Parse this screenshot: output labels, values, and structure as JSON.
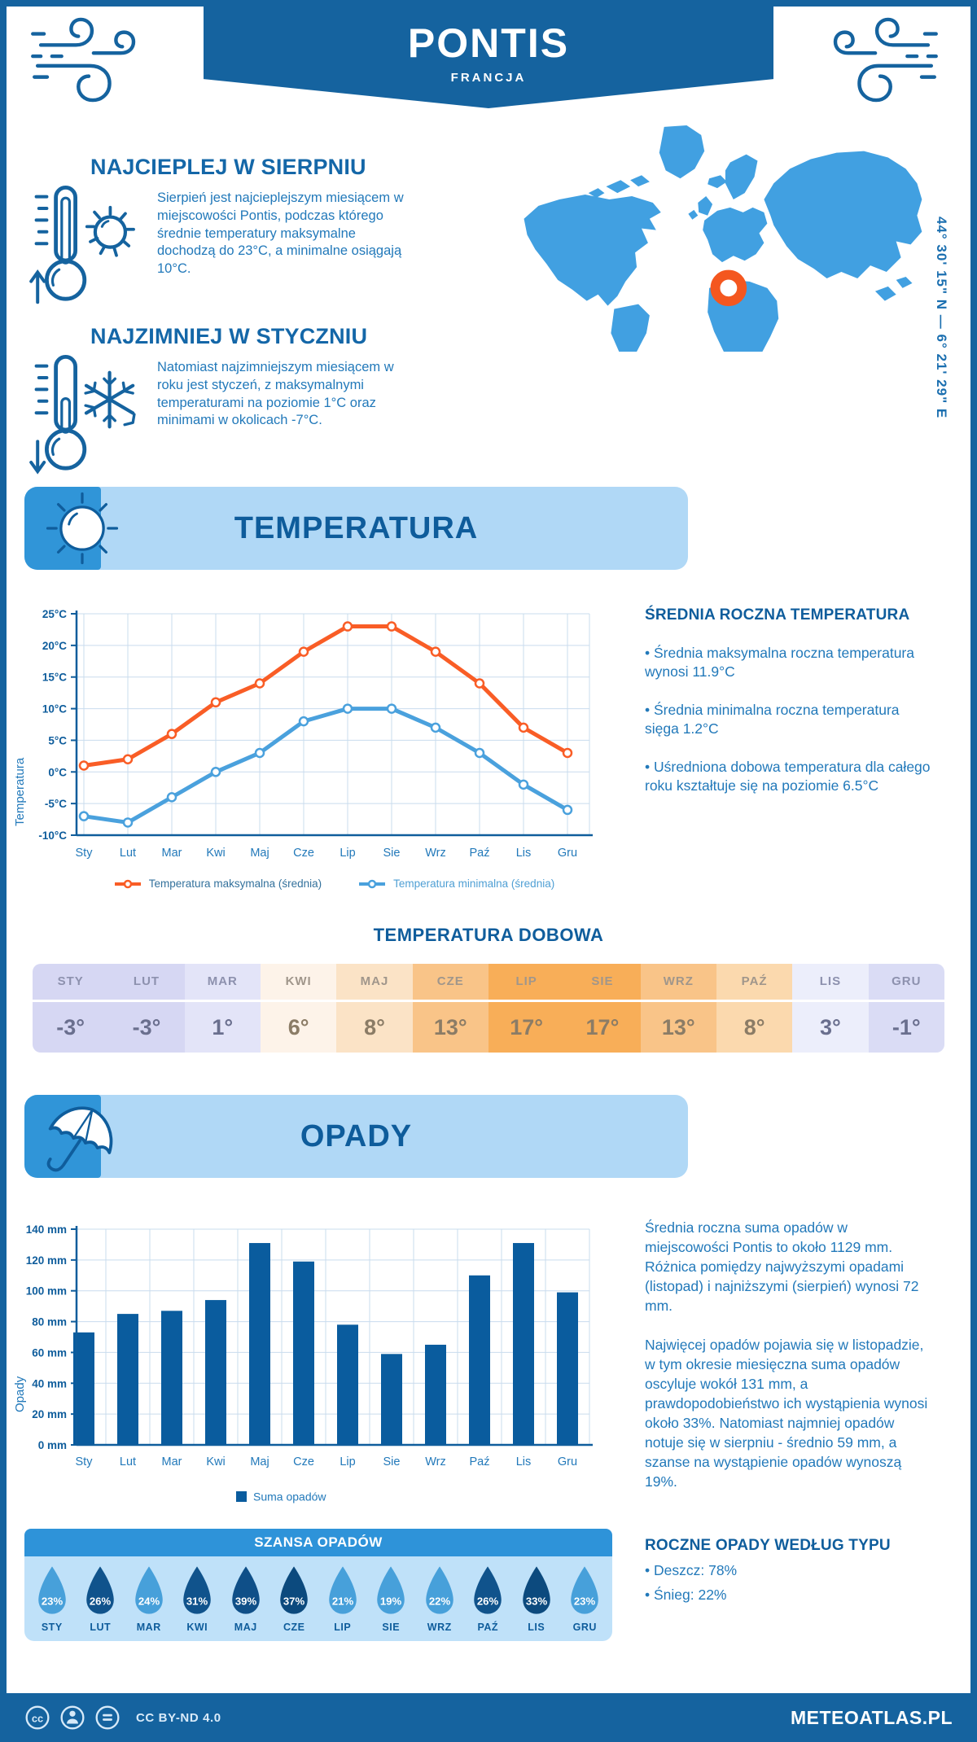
{
  "colors": {
    "primary": "#15639f",
    "heading": "#0f5d9c",
    "body_text": "#2279ba",
    "light_banner": "#b0d8f6",
    "banner_corner": "#3095d8",
    "map": "#41a0e1",
    "marker": "#f4571f",
    "grid": "#c9dcee",
    "chance_header": "#2e93d9",
    "chance_panel": "#bfe1f9"
  },
  "header": {
    "title": "PONTIS",
    "subtitle": "FRANCJA"
  },
  "coordinates": "44° 30' 15\" N — 6° 21' 29\" E",
  "highlights": [
    {
      "title": "NAJCIEPLEJ W SIERPNIU",
      "text": "Sierpień jest najcieplejszym miesiącem w miejscowości Pontis, podczas którego średnie temperatury maksymalne dochodzą do 23°C, a minimalne osiągają 10°C."
    },
    {
      "title": "NAJZIMNIEJ W STYCZNIU",
      "text": "Natomiast najzimniejszym miesiącem w roku jest styczeń, z maksymalnymi temperaturami na poziomie 1°C oraz minimami w okolicach -7°C."
    }
  ],
  "temperature_section": {
    "banner_title": "TEMPERATURA",
    "annual_heading": "ŚREDNIA ROCZNA TEMPERATURA",
    "annual_bullets": [
      "• Średnia maksymalna roczna temperatura wynosi 11.9°C",
      "• Średnia minimalna roczna temperatura sięga 1.2°C",
      "• Uśredniona dobowa temperatura dla całego roku kształtuje się na poziomie 6.5°C"
    ],
    "daily_heading": "TEMPERATURA DOBOWA",
    "daily_table": {
      "columns": [
        {
          "month": "STY",
          "value": "-3°",
          "bg": "#d6d7f3",
          "tone": "cool"
        },
        {
          "month": "LUT",
          "value": "-3°",
          "bg": "#d6d7f3",
          "tone": "cool"
        },
        {
          "month": "MAR",
          "value": "1°",
          "bg": "#e3e4f8",
          "tone": "cool"
        },
        {
          "month": "KWI",
          "value": "6°",
          "bg": "#fdf3e9",
          "tone": "warm"
        },
        {
          "month": "MAJ",
          "value": "8°",
          "bg": "#fbe3c6",
          "tone": "warm"
        },
        {
          "month": "CZE",
          "value": "13°",
          "bg": "#f9c488",
          "tone": "warm"
        },
        {
          "month": "LIP",
          "value": "17°",
          "bg": "#f8ae58",
          "tone": "warm"
        },
        {
          "month": "SIE",
          "value": "17°",
          "bg": "#f8ae58",
          "tone": "warm"
        },
        {
          "month": "WRZ",
          "value": "13°",
          "bg": "#f9c488",
          "tone": "warm"
        },
        {
          "month": "PAŹ",
          "value": "8°",
          "bg": "#fbd9ae",
          "tone": "warm"
        },
        {
          "month": "LIS",
          "value": "3°",
          "bg": "#eceefb",
          "tone": "cool"
        },
        {
          "month": "GRU",
          "value": "-1°",
          "bg": "#dadcf5",
          "tone": "cool"
        }
      ]
    }
  },
  "precipitation_section": {
    "banner_title": "OPADY",
    "paragraphs": [
      "Średnia roczna suma opadów w miejscowości Pontis to około 1129 mm. Różnica pomiędzy najwyższymi opadami (listopad) i najniższymi (sierpień) wynosi 72 mm.",
      "Najwięcej opadów pojawia się w listopadzie, w tym okresie miesięczna suma opadów oscyluje wokół 131 mm, a prawdopodobieństwo ich wystąpienia wynosi około 33%. Natomiast najmniej opadów notuje się w sierpniu - średnio 59 mm, a szanse na wystąpienie opadów wynoszą 19%."
    ],
    "chance_title": "SZANSA OPADÓW",
    "chance": [
      {
        "month": "STY",
        "percent": "23%",
        "color": "#47a0da"
      },
      {
        "month": "LUT",
        "percent": "26%",
        "color": "#10538c"
      },
      {
        "month": "MAR",
        "percent": "24%",
        "color": "#47a0da"
      },
      {
        "month": "KWI",
        "percent": "31%",
        "color": "#10538c"
      },
      {
        "month": "MAJ",
        "percent": "39%",
        "color": "#0f4f88"
      },
      {
        "month": "CZE",
        "percent": "37%",
        "color": "#0c4a7e"
      },
      {
        "month": "LIP",
        "percent": "21%",
        "color": "#47a0da"
      },
      {
        "month": "SIE",
        "percent": "19%",
        "color": "#47a0da"
      },
      {
        "month": "WRZ",
        "percent": "22%",
        "color": "#47a0da"
      },
      {
        "month": "PAŹ",
        "percent": "26%",
        "color": "#10538c"
      },
      {
        "month": "LIS",
        "percent": "33%",
        "color": "#0c4a7e"
      },
      {
        "month": "GRU",
        "percent": "23%",
        "color": "#47a0da"
      }
    ],
    "type_heading": "ROCZNE OPADY WEDŁUG TYPU",
    "type_bullets": [
      "• Deszcz: 78%",
      "• Śnieg: 22%"
    ]
  },
  "chart_data": [
    {
      "type": "line",
      "categories": [
        "Sty",
        "Lut",
        "Mar",
        "Kwi",
        "Maj",
        "Cze",
        "Lip",
        "Sie",
        "Wrz",
        "Paź",
        "Lis",
        "Gru"
      ],
      "series": [
        {
          "name": "Temperatura maksymalna (średnia)",
          "color": "#f95d26",
          "values": [
            1,
            2,
            6,
            11,
            14,
            19,
            23,
            23,
            19,
            14,
            7,
            3
          ]
        },
        {
          "name": "Temperatura minimalna (średnia)",
          "color": "#4aa1dd",
          "values": [
            -7,
            -8,
            -4,
            0,
            3,
            8,
            10,
            10,
            7,
            3,
            -2,
            -6
          ]
        }
      ],
      "ylabel": "Temperatura",
      "ylim": [
        -10,
        25
      ],
      "ytick_step": 5,
      "ytick_suffix": "°C",
      "grid": true,
      "legend_position": "bottom"
    },
    {
      "type": "bar",
      "categories": [
        "Sty",
        "Lut",
        "Mar",
        "Kwi",
        "Maj",
        "Cze",
        "Lip",
        "Sie",
        "Wrz",
        "Paź",
        "Lis",
        "Gru"
      ],
      "series": [
        {
          "name": "Suma opadów",
          "color": "#0a5c9e",
          "values": [
            73,
            85,
            87,
            94,
            131,
            119,
            78,
            59,
            65,
            110,
            131,
            99
          ]
        }
      ],
      "ylabel": "Opady",
      "ylim": [
        0,
        140
      ],
      "ytick_step": 20,
      "ytick_suffix": " mm",
      "grid": true,
      "legend_position": "bottom"
    }
  ],
  "footer": {
    "license": "CC BY-ND 4.0",
    "site": "METEOATLAS.PL"
  }
}
